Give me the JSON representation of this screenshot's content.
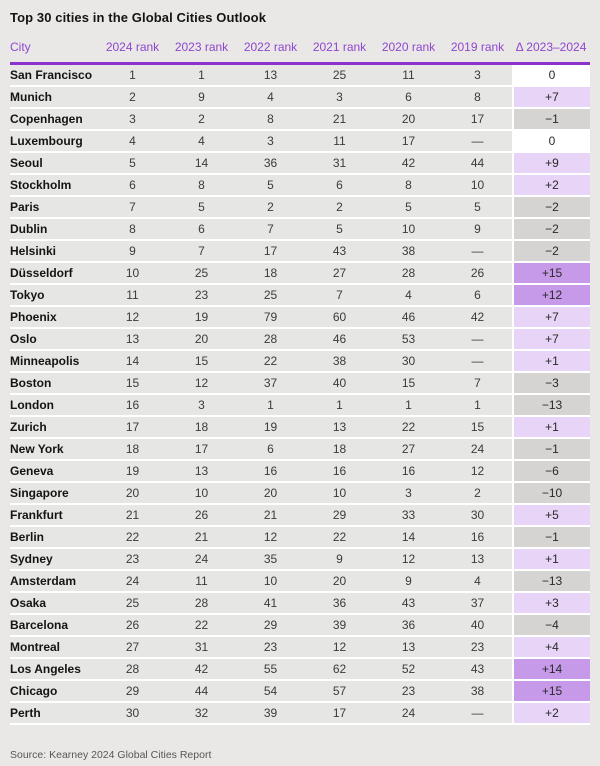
{
  "title": "Top 30 cities in the Global Cities Outlook",
  "source": "Source: Kearney 2024 Global Cities Report",
  "colors": {
    "header_text": "#8f46cf",
    "header_rule": "#8c33cc",
    "row_bg": "#e6e6e4",
    "delta_zero": "#ffffff",
    "delta_neg": "#d5d4d2",
    "delta_pos": "#e8d4f6",
    "delta_pos_strong": "#c69ae8"
  },
  "chart_data": {
    "type": "table",
    "title": "Top 30 cities in the Global Cities Outlook",
    "columns": [
      "City",
      "2024 rank",
      "2023 rank",
      "2022 rank",
      "2021 rank",
      "2020 rank",
      "2019 rank",
      "Δ 2023–2024"
    ],
    "rows": [
      {
        "city": "San Francisco",
        "ranks": [
          "1",
          "1",
          "13",
          "25",
          "11",
          "3"
        ],
        "delta": "0",
        "delta_tier": "zero"
      },
      {
        "city": "Munich",
        "ranks": [
          "2",
          "9",
          "4",
          "3",
          "6",
          "8"
        ],
        "delta": "+7",
        "delta_tier": "pos"
      },
      {
        "city": "Copenhagen",
        "ranks": [
          "3",
          "2",
          "8",
          "21",
          "20",
          "17"
        ],
        "delta": "−1",
        "delta_tier": "neg"
      },
      {
        "city": "Luxembourg",
        "ranks": [
          "4",
          "4",
          "3",
          "11",
          "17",
          "—"
        ],
        "delta": "0",
        "delta_tier": "zero"
      },
      {
        "city": "Seoul",
        "ranks": [
          "5",
          "14",
          "36",
          "31",
          "42",
          "44"
        ],
        "delta": "+9",
        "delta_tier": "pos"
      },
      {
        "city": "Stockholm",
        "ranks": [
          "6",
          "8",
          "5",
          "6",
          "8",
          "10"
        ],
        "delta": "+2",
        "delta_tier": "pos"
      },
      {
        "city": "Paris",
        "ranks": [
          "7",
          "5",
          "2",
          "2",
          "5",
          "5"
        ],
        "delta": "−2",
        "delta_tier": "neg"
      },
      {
        "city": "Dublin",
        "ranks": [
          "8",
          "6",
          "7",
          "5",
          "10",
          "9"
        ],
        "delta": "−2",
        "delta_tier": "neg"
      },
      {
        "city": "Helsinki",
        "ranks": [
          "9",
          "7",
          "17",
          "43",
          "38",
          "—"
        ],
        "delta": "−2",
        "delta_tier": "neg"
      },
      {
        "city": "Düsseldorf",
        "ranks": [
          "10",
          "25",
          "18",
          "27",
          "28",
          "26"
        ],
        "delta": "+15",
        "delta_tier": "pos_strong"
      },
      {
        "city": "Tokyo",
        "ranks": [
          "11",
          "23",
          "25",
          "7",
          "4",
          "6"
        ],
        "delta": "+12",
        "delta_tier": "pos_strong"
      },
      {
        "city": "Phoenix",
        "ranks": [
          "12",
          "19",
          "79",
          "60",
          "46",
          "42"
        ],
        "delta": "+7",
        "delta_tier": "pos"
      },
      {
        "city": "Oslo",
        "ranks": [
          "13",
          "20",
          "28",
          "46",
          "53",
          "—"
        ],
        "delta": "+7",
        "delta_tier": "pos"
      },
      {
        "city": "Minneapolis",
        "ranks": [
          "14",
          "15",
          "22",
          "38",
          "30",
          "—"
        ],
        "delta": "+1",
        "delta_tier": "pos"
      },
      {
        "city": "Boston",
        "ranks": [
          "15",
          "12",
          "37",
          "40",
          "15",
          "7"
        ],
        "delta": "−3",
        "delta_tier": "neg"
      },
      {
        "city": "London",
        "ranks": [
          "16",
          "3",
          "1",
          "1",
          "1",
          "1"
        ],
        "delta": "−13",
        "delta_tier": "neg"
      },
      {
        "city": "Zurich",
        "ranks": [
          "17",
          "18",
          "19",
          "13",
          "22",
          "15"
        ],
        "delta": "+1",
        "delta_tier": "pos"
      },
      {
        "city": "New York",
        "ranks": [
          "18",
          "17",
          "6",
          "18",
          "27",
          "24"
        ],
        "delta": "−1",
        "delta_tier": "neg"
      },
      {
        "city": "Geneva",
        "ranks": [
          "19",
          "13",
          "16",
          "16",
          "16",
          "12"
        ],
        "delta": "−6",
        "delta_tier": "neg"
      },
      {
        "city": "Singapore",
        "ranks": [
          "20",
          "10",
          "20",
          "10",
          "3",
          "2"
        ],
        "delta": "−10",
        "delta_tier": "neg"
      },
      {
        "city": "Frankfurt",
        "ranks": [
          "21",
          "26",
          "21",
          "29",
          "33",
          "30"
        ],
        "delta": "+5",
        "delta_tier": "pos"
      },
      {
        "city": "Berlin",
        "ranks": [
          "22",
          "21",
          "12",
          "22",
          "14",
          "16"
        ],
        "delta": "−1",
        "delta_tier": "neg"
      },
      {
        "city": "Sydney",
        "ranks": [
          "23",
          "24",
          "35",
          "9",
          "12",
          "13"
        ],
        "delta": "+1",
        "delta_tier": "pos"
      },
      {
        "city": "Amsterdam",
        "ranks": [
          "24",
          "11",
          "10",
          "20",
          "9",
          "4"
        ],
        "delta": "−13",
        "delta_tier": "neg"
      },
      {
        "city": "Osaka",
        "ranks": [
          "25",
          "28",
          "41",
          "36",
          "43",
          "37"
        ],
        "delta": "+3",
        "delta_tier": "pos"
      },
      {
        "city": "Barcelona",
        "ranks": [
          "26",
          "22",
          "29",
          "39",
          "36",
          "40"
        ],
        "delta": "−4",
        "delta_tier": "neg"
      },
      {
        "city": "Montreal",
        "ranks": [
          "27",
          "31",
          "23",
          "12",
          "13",
          "23"
        ],
        "delta": "+4",
        "delta_tier": "pos"
      },
      {
        "city": "Los Angeles",
        "ranks": [
          "28",
          "42",
          "55",
          "62",
          "52",
          "43"
        ],
        "delta": "+14",
        "delta_tier": "pos_strong"
      },
      {
        "city": "Chicago",
        "ranks": [
          "29",
          "44",
          "54",
          "57",
          "23",
          "38"
        ],
        "delta": "+15",
        "delta_tier": "pos_strong"
      },
      {
        "city": "Perth",
        "ranks": [
          "30",
          "32",
          "39",
          "17",
          "24",
          "—"
        ],
        "delta": "+2",
        "delta_tier": "pos"
      }
    ]
  }
}
